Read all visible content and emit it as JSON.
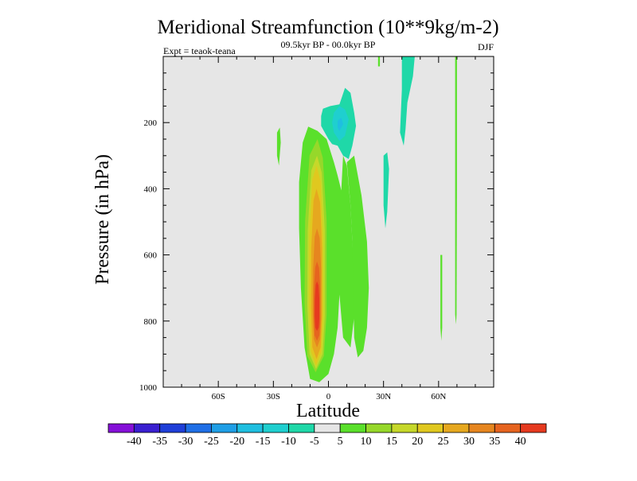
{
  "chart_data": {
    "type": "contour",
    "title": "Meridional Streamfunction (10**9kg/m-2)",
    "subtitle": "09.5kyr BP - 00.0kyr BP",
    "left_label": "Expt = teaok-teana",
    "right_label": "DJF",
    "xlabel": "Latitude",
    "ylabel": "Pressure (in hPa)",
    "xlim": [
      -90,
      90
    ],
    "ylim": [
      0,
      1000
    ],
    "x_ticks": [
      {
        "value": -60,
        "label": "60S"
      },
      {
        "value": -30,
        "label": "30S"
      },
      {
        "value": 0,
        "label": "0"
      },
      {
        "value": 30,
        "label": "30N"
      },
      {
        "value": 60,
        "label": "60N"
      }
    ],
    "y_ticks": [
      {
        "value": 200,
        "label": "200"
      },
      {
        "value": 400,
        "label": "400"
      },
      {
        "value": 600,
        "label": "600"
      },
      {
        "value": 800,
        "label": "800"
      },
      {
        "value": 1000,
        "label": "1000"
      }
    ],
    "background_color": "#e6e6e6",
    "colorbar": {
      "labels": [
        "-40",
        "-35",
        "-30",
        "-25",
        "-20",
        "-15",
        "-10",
        "-5",
        "5",
        "10",
        "15",
        "20",
        "25",
        "30",
        "35",
        "40"
      ],
      "colors": [
        "#8510d8",
        "#3a1fd0",
        "#1f3fd8",
        "#1f6fe6",
        "#1f9fe6",
        "#1fbfe0",
        "#1fcfcf",
        "#1fd8a8",
        "#e6e6e6",
        "#5ae02b",
        "#96d82a",
        "#c6d82a",
        "#e0c81f",
        "#e6a81f",
        "#e6861f",
        "#e6641f",
        "#e63a1f"
      ]
    },
    "features": {
      "positive_cell": {
        "center_lat": -6,
        "center_pressure": 760,
        "max_value": 40,
        "lat_range": [
          -13,
          8
        ],
        "pressure_range": [
          210,
          980
        ]
      },
      "negative_cell_upper": {
        "center_lat": 5,
        "center_pressure": 230,
        "min_value": -15,
        "lat_range": [
          -4,
          15
        ],
        "pressure_range": [
          70,
          310
        ]
      },
      "negative_strip_45N": {
        "lat_range": [
          40,
          47
        ],
        "pressure_range": [
          0,
          260
        ],
        "value": -5
      },
      "negative_strip_32N": {
        "lat_range": [
          30,
          33
        ],
        "pressure_range": [
          300,
          520
        ],
        "value": -5
      },
      "positive_strip_60N": {
        "lat_range": [
          61,
          62
        ],
        "pressure_range": [
          600,
          860
        ],
        "value": 5
      },
      "positive_strip_70N": {
        "lat_range": [
          69,
          70
        ],
        "pressure_range": [
          0,
          810
        ],
        "value": 5
      },
      "positive_strip_27S": {
        "lat_range": [
          -28,
          -26
        ],
        "pressure_range": [
          220,
          330
        ],
        "value": 5
      }
    }
  }
}
